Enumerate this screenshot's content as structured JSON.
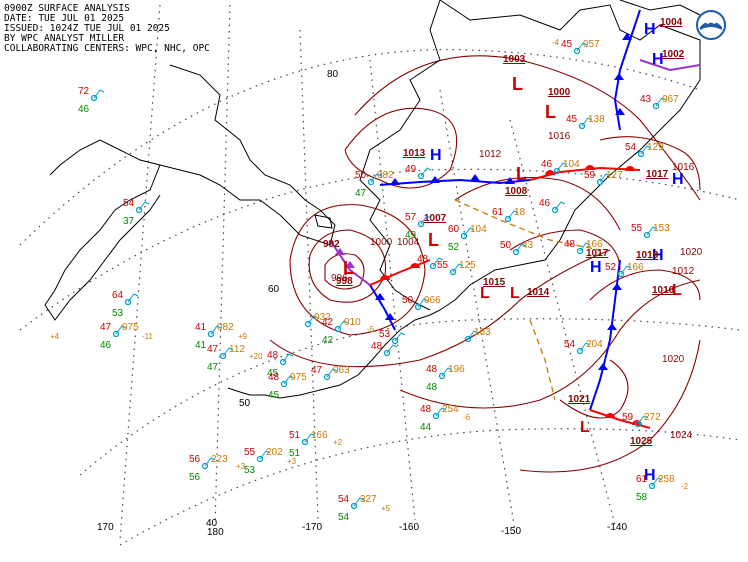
{
  "header": {
    "line1": "0900Z SURFACE ANALYSIS",
    "line2": "DATE: TUE JUL 01 2025",
    "line3": "ISSUED: 1024Z TUE JUL 01 2025",
    "line4": "BY WPC ANALYST MILLER",
    "line5": "COLLABORATING CENTERS: WPC, NHC, OPC"
  },
  "logo": {
    "name": "noaa-logo",
    "color": "#1e5aa8"
  },
  "colors": {
    "isobar": "#8b0000",
    "high": "#0000ff",
    "low": "#cc0000",
    "cold_front": "#0000ff",
    "warm_front": "#ff0000",
    "occluded": "#9933cc",
    "station_temp": "#cc0000",
    "station_dew": "#008800",
    "station_pressure": "#cc7700",
    "grid": "#333333",
    "coast": "#000000"
  },
  "grid_labels": [
    {
      "text": "80"
    },
    {
      "text": "60"
    },
    {
      "text": "50"
    },
    {
      "text": "40"
    },
    {
      "text": "170"
    },
    {
      "text": "180"
    },
    {
      "text": "-170"
    },
    {
      "text": "-160"
    },
    {
      "text": "-150"
    },
    {
      "text": "-140"
    }
  ],
  "pressure_centers": [
    {
      "type": "H",
      "value": "1004"
    },
    {
      "type": "H",
      "value": "1002"
    },
    {
      "type": "L",
      "value": "1003"
    },
    {
      "type": "L",
      "value": "1000"
    },
    {
      "type": "H",
      "value": "1013"
    },
    {
      "type": "L",
      "value": "1008"
    },
    {
      "type": "L",
      "value": "1007"
    },
    {
      "type": "L",
      "value": "998"
    },
    {
      "type": "L",
      "value": "1015"
    },
    {
      "type": "L",
      "value": "1014"
    },
    {
      "type": "H",
      "value": "1017"
    },
    {
      "type": "H",
      "value": "1018"
    },
    {
      "type": "L",
      "value": "1021"
    },
    {
      "type": "H",
      "value": "1025"
    },
    {
      "type": "H",
      "value": "1017"
    },
    {
      "type": "L",
      "value": "1016"
    }
  ],
  "isobar_labels": [
    {
      "text": "1004"
    },
    {
      "text": "1000"
    },
    {
      "text": "992"
    },
    {
      "text": "996"
    },
    {
      "text": "1016"
    },
    {
      "text": "1012"
    },
    {
      "text": "1020"
    },
    {
      "text": "1024"
    },
    {
      "text": "1020"
    },
    {
      "text": "1016"
    },
    {
      "text": "1012"
    }
  ],
  "stations": [
    {
      "t": "72",
      "d": "46",
      "p": ""
    },
    {
      "t": "54",
      "d": "37",
      "p": ""
    },
    {
      "t": "64",
      "d": "53",
      "p": ""
    },
    {
      "t": "47",
      "d": "46",
      "p": "075"
    },
    {
      "t": "41",
      "d": "41",
      "p": "082"
    },
    {
      "t": "47",
      "d": "47",
      "p": "112"
    },
    {
      "t": "48",
      "d": "45",
      "p": ""
    },
    {
      "t": "48",
      "d": "45",
      "p": "075"
    },
    {
      "t": "",
      "d": "",
      "p": "032"
    },
    {
      "t": "42",
      "d": "42",
      "p": "010"
    },
    {
      "t": "47",
      "d": "",
      "p": "063"
    },
    {
      "t": "51",
      "d": "51",
      "p": "166"
    },
    {
      "t": "55",
      "d": "53",
      "p": "202"
    },
    {
      "t": "56",
      "d": "56",
      "p": "223"
    },
    {
      "t": "54",
      "d": "54",
      "p": "327"
    },
    {
      "t": "50",
      "d": "47",
      "p": "082"
    },
    {
      "t": "57",
      "d": "49",
      "p": ""
    },
    {
      "t": "60",
      "d": "52",
      "p": "104"
    },
    {
      "t": "50",
      "d": "",
      "p": "43"
    },
    {
      "t": "61",
      "d": "",
      "p": "18"
    },
    {
      "t": "48",
      "d": "",
      "p": ""
    },
    {
      "t": "55",
      "d": "",
      "p": "125"
    },
    {
      "t": "50",
      "d": "",
      "p": "066"
    },
    {
      "t": "53",
      "d": "",
      "p": ""
    },
    {
      "t": "48",
      "d": "",
      "p": ""
    },
    {
      "t": "",
      "d": "",
      "p": "163"
    },
    {
      "t": "48",
      "d": "48",
      "p": "196"
    },
    {
      "t": "48",
      "d": "44",
      "p": "254"
    },
    {
      "t": "54",
      "d": "",
      "p": "204"
    },
    {
      "t": "59",
      "d": "",
      "p": "127"
    },
    {
      "t": "55",
      "d": "",
      "p": "153"
    },
    {
      "t": "52",
      "d": "",
      "p": "166"
    },
    {
      "t": "59",
      "d": "",
      "p": "272"
    },
    {
      "t": "61",
      "d": "58",
      "p": "258"
    },
    {
      "t": "43",
      "d": "",
      "p": "067"
    },
    {
      "t": "46",
      "d": "",
      "p": "104"
    },
    {
      "t": "54",
      "d": "",
      "p": "129"
    },
    {
      "t": "45",
      "d": "",
      "p": "138"
    },
    {
      "t": "45",
      "d": "",
      "p": "057"
    },
    {
      "t": "49",
      "d": "",
      "p": ""
    },
    {
      "t": "48",
      "d": "",
      "p": "166"
    },
    {
      "t": "46",
      "d": "",
      "p": ""
    }
  ],
  "tendencies": [
    {
      "text": "+4"
    },
    {
      "text": "-11"
    },
    {
      "text": "+9"
    },
    {
      "text": "+20"
    },
    {
      "text": "-5"
    },
    {
      "text": "+2"
    },
    {
      "text": "+3"
    },
    {
      "text": "+3"
    },
    {
      "text": "+5"
    },
    {
      "text": "-6"
    },
    {
      "text": "-4"
    },
    {
      "text": "-2"
    }
  ]
}
